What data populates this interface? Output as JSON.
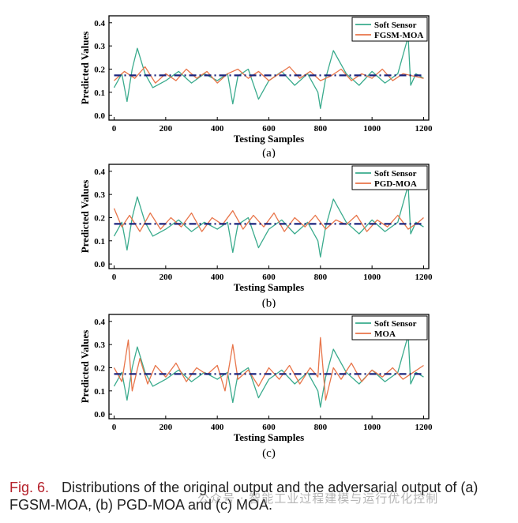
{
  "colors": {
    "soft_sensor": "#3aab8d",
    "adversarial": "#e8754a",
    "mean_line": "#1a237e",
    "caption_fig": "#b5212b"
  },
  "caption": {
    "label": "Fig. 6.",
    "text": "Distributions of the original output and the adversarial output of (a) FGSM-MOA, (b) PGD-MOA and (c) MOA."
  },
  "watermark": "公众号 · 智能工业过程建模与运行优化控制",
  "chart_data": [
    {
      "type": "line",
      "panel_label": "(a)",
      "xlabel": "Testing Samples",
      "ylabel": "Predicted Values",
      "xlim": [
        -20,
        1220
      ],
      "ylim": [
        -0.02,
        0.43
      ],
      "xticks": [
        0,
        200,
        400,
        600,
        800,
        1000,
        1200
      ],
      "yticks": [
        0.0,
        0.1,
        0.2,
        0.3,
        0.4
      ],
      "legend_position": "top-right",
      "grid": false,
      "reference_line": {
        "style": "dash-dot",
        "y": 0.173
      },
      "series": [
        {
          "name": "Soft Sensor",
          "x": [
            0,
            30,
            50,
            70,
            90,
            120,
            150,
            200,
            250,
            300,
            350,
            400,
            440,
            460,
            480,
            520,
            560,
            600,
            650,
            700,
            750,
            790,
            800,
            820,
            850,
            900,
            950,
            1000,
            1050,
            1100,
            1140,
            1150,
            1170,
            1200
          ],
          "y": [
            0.12,
            0.18,
            0.06,
            0.2,
            0.29,
            0.18,
            0.12,
            0.15,
            0.19,
            0.14,
            0.18,
            0.15,
            0.18,
            0.05,
            0.17,
            0.2,
            0.07,
            0.15,
            0.19,
            0.13,
            0.18,
            0.1,
            0.03,
            0.16,
            0.28,
            0.18,
            0.13,
            0.19,
            0.14,
            0.18,
            0.34,
            0.13,
            0.18,
            0.16
          ]
        },
        {
          "name": "FGSM-MOA",
          "x": [
            0,
            40,
            80,
            120,
            160,
            200,
            240,
            280,
            320,
            360,
            400,
            440,
            480,
            520,
            560,
            600,
            640,
            680,
            720,
            760,
            800,
            840,
            880,
            920,
            960,
            1000,
            1040,
            1080,
            1120,
            1160,
            1200
          ],
          "y": [
            0.15,
            0.19,
            0.16,
            0.21,
            0.14,
            0.18,
            0.15,
            0.2,
            0.16,
            0.19,
            0.14,
            0.18,
            0.2,
            0.16,
            0.19,
            0.15,
            0.18,
            0.21,
            0.16,
            0.19,
            0.15,
            0.17,
            0.2,
            0.15,
            0.18,
            0.16,
            0.2,
            0.15,
            0.18,
            0.17,
            0.16
          ]
        }
      ]
    },
    {
      "type": "line",
      "panel_label": "(b)",
      "xlabel": "Testing Samples",
      "ylabel": "Predicted Values",
      "xlim": [
        -20,
        1220
      ],
      "ylim": [
        -0.02,
        0.43
      ],
      "xticks": [
        0,
        200,
        400,
        600,
        800,
        1000,
        1200
      ],
      "yticks": [
        0.0,
        0.1,
        0.2,
        0.3,
        0.4
      ],
      "legend_position": "top-right",
      "grid": false,
      "reference_line": {
        "style": "dash-dot",
        "y": 0.173
      },
      "series": [
        {
          "name": "Soft Sensor",
          "x": [
            0,
            30,
            50,
            70,
            90,
            120,
            150,
            200,
            250,
            300,
            350,
            400,
            440,
            460,
            480,
            520,
            560,
            600,
            650,
            700,
            750,
            790,
            800,
            820,
            850,
            900,
            950,
            1000,
            1050,
            1100,
            1140,
            1150,
            1170,
            1200
          ],
          "y": [
            0.12,
            0.18,
            0.06,
            0.2,
            0.29,
            0.18,
            0.12,
            0.15,
            0.19,
            0.14,
            0.18,
            0.15,
            0.18,
            0.05,
            0.17,
            0.2,
            0.07,
            0.15,
            0.19,
            0.13,
            0.18,
            0.1,
            0.03,
            0.16,
            0.28,
            0.18,
            0.13,
            0.19,
            0.14,
            0.18,
            0.34,
            0.13,
            0.18,
            0.16
          ]
        },
        {
          "name": "PGD-MOA",
          "x": [
            0,
            30,
            60,
            100,
            140,
            180,
            220,
            260,
            300,
            340,
            380,
            420,
            460,
            500,
            540,
            580,
            620,
            660,
            700,
            740,
            780,
            820,
            860,
            900,
            940,
            980,
            1020,
            1060,
            1100,
            1140,
            1180,
            1200
          ],
          "y": [
            0.24,
            0.16,
            0.21,
            0.14,
            0.22,
            0.15,
            0.2,
            0.16,
            0.22,
            0.14,
            0.2,
            0.17,
            0.23,
            0.15,
            0.21,
            0.16,
            0.22,
            0.14,
            0.2,
            0.16,
            0.21,
            0.15,
            0.19,
            0.17,
            0.21,
            0.14,
            0.19,
            0.16,
            0.21,
            0.15,
            0.18,
            0.2
          ]
        }
      ]
    },
    {
      "type": "line",
      "panel_label": "(c)",
      "xlabel": "Testing Samples",
      "ylabel": "Predicted Values",
      "xlim": [
        -20,
        1220
      ],
      "ylim": [
        -0.02,
        0.43
      ],
      "xticks": [
        0,
        200,
        400,
        600,
        800,
        1000,
        1200
      ],
      "yticks": [
        0.0,
        0.1,
        0.2,
        0.3,
        0.4
      ],
      "legend_position": "top-right",
      "grid": false,
      "reference_line": {
        "style": "dash-dot",
        "y": 0.173
      },
      "series": [
        {
          "name": "Soft Sensor",
          "x": [
            0,
            30,
            50,
            70,
            90,
            120,
            150,
            200,
            250,
            300,
            350,
            400,
            440,
            460,
            480,
            520,
            560,
            600,
            650,
            700,
            750,
            790,
            800,
            820,
            850,
            900,
            950,
            1000,
            1050,
            1100,
            1140,
            1150,
            1170,
            1200
          ],
          "y": [
            0.12,
            0.18,
            0.06,
            0.2,
            0.29,
            0.18,
            0.12,
            0.15,
            0.19,
            0.14,
            0.18,
            0.15,
            0.18,
            0.05,
            0.17,
            0.2,
            0.07,
            0.15,
            0.19,
            0.13,
            0.18,
            0.1,
            0.03,
            0.16,
            0.28,
            0.18,
            0.13,
            0.19,
            0.14,
            0.18,
            0.34,
            0.13,
            0.18,
            0.16
          ]
        },
        {
          "name": "MOA",
          "x": [
            0,
            30,
            55,
            70,
            100,
            130,
            160,
            200,
            240,
            280,
            320,
            360,
            400,
            430,
            460,
            480,
            520,
            560,
            600,
            640,
            680,
            720,
            760,
            790,
            800,
            820,
            850,
            880,
            920,
            960,
            1000,
            1040,
            1080,
            1120,
            1160,
            1200
          ],
          "y": [
            0.2,
            0.14,
            0.32,
            0.1,
            0.24,
            0.13,
            0.21,
            0.16,
            0.22,
            0.14,
            0.2,
            0.17,
            0.21,
            0.1,
            0.3,
            0.15,
            0.19,
            0.12,
            0.2,
            0.15,
            0.21,
            0.13,
            0.2,
            0.16,
            0.33,
            0.06,
            0.2,
            0.15,
            0.22,
            0.14,
            0.19,
            0.16,
            0.2,
            0.15,
            0.18,
            0.21
          ]
        }
      ]
    }
  ]
}
